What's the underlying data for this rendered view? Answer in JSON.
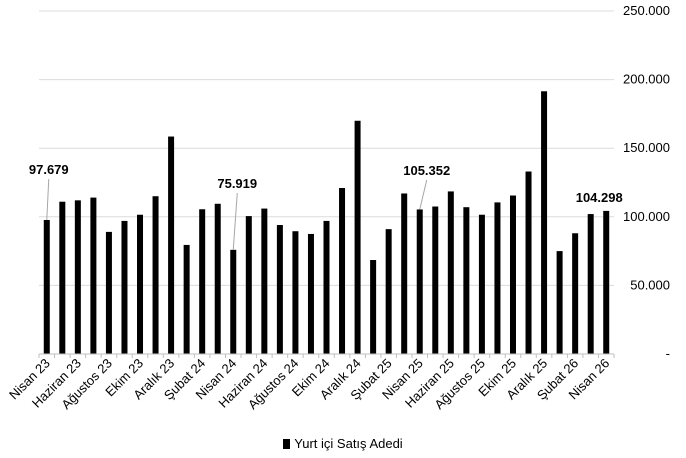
{
  "chart_data": {
    "type": "bar",
    "categories": [
      "Nisan 23",
      "Mayıs 23",
      "Haziran 23",
      "Temmuz 23",
      "Ağustos 23",
      "Eylül 23",
      "Ekim 23",
      "Kasım 23",
      "Aralık 23",
      "Ocak 24",
      "Şubat 24",
      "Mart 24",
      "Nisan 24",
      "Mayıs 24",
      "Haziran 24",
      "Temmuz 24",
      "Ağustos 24",
      "Eylül 24",
      "Ekim 24",
      "Kasım 24",
      "Aralık 24",
      "Ocak 25",
      "Şubat 25",
      "Mart 25",
      "Nisan 25",
      "Mayıs 25",
      "Haziran 25",
      "Temmuz 25",
      "Ağustos 25",
      "Eylül 25",
      "Ekim 25",
      "Kasım 25",
      "Aralık 25",
      "Ocak 26",
      "Şubat 26",
      "Mart 26",
      "Nisan 26"
    ],
    "visible_tick_labels": [
      "Nisan 23",
      "Haziran 23",
      "Ağustos 23",
      "Ekim 23",
      "Aralık 23",
      "Şubat 24",
      "Nisan 24",
      "Haziran 24",
      "Ağustos 24",
      "Ekim 24",
      "Aralık 24",
      "Şubat 25",
      "Nisan 25",
      "Haziran 25",
      "Ağustos 25",
      "Ekim 25",
      "Aralık 25",
      "Şubat 26",
      "Nisan 26"
    ],
    "series": [
      {
        "name": "Yurt içi Satış Adedi",
        "color": "#000000",
        "values": [
          97679,
          111000,
          112000,
          114000,
          89000,
          97000,
          101500,
          115000,
          158500,
          79500,
          105500,
          109500,
          75919,
          100500,
          106000,
          94000,
          89500,
          87500,
          97000,
          121000,
          170000,
          68500,
          91000,
          117000,
          105352,
          107500,
          118500,
          107000,
          101500,
          110500,
          115500,
          133000,
          191500,
          75000,
          88000,
          102000,
          104298
        ]
      }
    ],
    "annotations": [
      {
        "category": "Nisan 23",
        "text": "97.679"
      },
      {
        "category": "Nisan 24",
        "text": "75.919"
      },
      {
        "category": "Nisan 25",
        "text": "105.352"
      },
      {
        "category": "Nisan 26",
        "text": "104.298"
      }
    ],
    "y_ticks": [
      0,
      50000,
      100000,
      150000,
      200000,
      250000
    ],
    "y_tick_labels": [
      "-",
      "50.000",
      "100.000",
      "150.000",
      "200.000",
      "250.000"
    ],
    "ylim": [
      0,
      250000
    ],
    "grid": true,
    "y_axis_side": "right",
    "legend_position": "bottom-center",
    "title": "",
    "xlabel": "",
    "ylabel": ""
  }
}
